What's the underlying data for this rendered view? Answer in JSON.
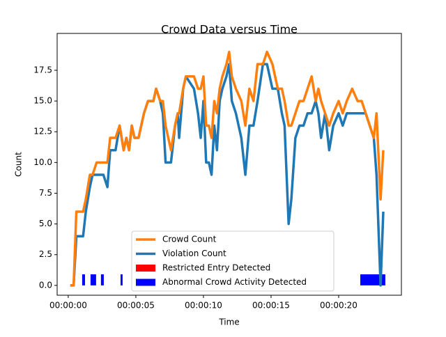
{
  "chart_data": {
    "type": "line",
    "title": "Crowd Data versus Time",
    "x_label": "Time",
    "y_label": "Count",
    "x": [
      0.15,
      0.4,
      0.6,
      1.1,
      1.3,
      1.6,
      1.8,
      2.1,
      2.6,
      2.9,
      3.1,
      3.5,
      3.8,
      4.1,
      4.3,
      4.5,
      4.7,
      4.9,
      5.2,
      5.6,
      5.9,
      6.3,
      6.5,
      6.8,
      7.0,
      7.2,
      7.6,
      7.9,
      8.1,
      8.2,
      8.5,
      8.7,
      9.3,
      9.6,
      9.8,
      10.0,
      10.2,
      10.4,
      10.6,
      10.8,
      11.0,
      11.2,
      11.4,
      11.7,
      11.9,
      12.1,
      12.4,
      12.8,
      13.1,
      13.4,
      13.7,
      14.0,
      14.4,
      14.7,
      15.1,
      15.5,
      15.8,
      16.0,
      16.3,
      16.5,
      16.8,
      17.1,
      17.4,
      17.7,
      18.0,
      18.3,
      18.5,
      18.7,
      19.0,
      19.3,
      19.6,
      20.0,
      20.3,
      20.6,
      21.0,
      21.4,
      21.7,
      22.0,
      22.3,
      22.6,
      22.8,
      23.1,
      23.3
    ],
    "series": [
      {
        "name": "Violation Count",
        "color": "#1f77b4",
        "values": [
          0,
          0,
          4,
          4,
          6,
          8,
          9,
          9,
          9,
          8,
          11,
          11,
          13,
          11,
          12,
          11,
          13,
          12,
          12,
          14,
          15,
          15,
          16,
          15,
          14,
          10,
          10,
          13,
          14,
          12,
          16,
          17,
          16,
          14,
          12,
          15,
          10,
          10,
          9,
          13,
          11,
          15,
          16,
          17,
          18,
          15,
          14,
          12,
          9,
          13,
          13,
          15,
          18,
          18,
          16,
          16,
          14,
          13,
          5,
          7,
          12,
          13,
          13,
          14,
          14,
          15,
          14,
          12,
          14,
          11,
          13,
          14,
          13,
          14,
          14,
          14,
          14,
          14,
          13,
          12,
          9,
          0,
          6
        ]
      },
      {
        "name": "Crowd Count",
        "color": "#ff7f0e",
        "values": [
          0,
          0,
          6,
          6,
          7,
          9,
          9,
          10,
          10,
          10,
          12,
          12,
          13,
          11,
          12,
          11,
          13,
          12,
          12,
          14,
          15,
          15,
          16,
          15,
          15,
          13,
          11,
          13,
          14,
          14,
          16,
          17,
          17,
          16,
          16,
          17,
          13,
          13,
          12,
          15,
          14,
          16,
          17,
          18,
          19,
          17,
          16,
          15,
          13,
          16,
          15,
          18,
          18,
          19,
          18,
          16,
          16,
          15,
          13,
          13,
          14,
          15,
          15,
          16,
          17,
          15,
          16,
          15,
          14,
          13,
          14,
          15,
          14,
          15,
          16,
          15,
          15,
          14,
          13,
          12,
          14,
          7,
          11
        ]
      }
    ],
    "events": [
      {
        "name": "Restricted Entry Detected",
        "color": "#ff0000",
        "height": 0.9,
        "spans": []
      },
      {
        "name": "Abnormal Crowd Activity Detected",
        "color": "#0000ff",
        "height": 0.9,
        "spans": [
          [
            1.03,
            1.24
          ],
          [
            1.65,
            2.06
          ],
          [
            2.42,
            2.63
          ],
          [
            3.87,
            4.02
          ],
          [
            21.6,
            23.45
          ]
        ]
      }
    ],
    "xlim": [
      -0.82,
      24.64
    ],
    "ylim": [
      -0.8,
      20.5
    ],
    "xticks": [
      {
        "value": 0,
        "label": "00:00:00"
      },
      {
        "value": 5,
        "label": "00:00:05"
      },
      {
        "value": 10,
        "label": "00:00:10"
      },
      {
        "value": 15,
        "label": "00:00:15"
      },
      {
        "value": 20,
        "label": "00:00:20"
      }
    ],
    "yticks": [
      {
        "value": 0,
        "label": "0.0"
      },
      2.5,
      {
        "value": 5,
        "label": "5.0"
      },
      7.5,
      {
        "value": 10,
        "label": "10.0"
      },
      12.5,
      {
        "value": 15,
        "label": "15.0"
      },
      17.5
    ],
    "legend": "lower center"
  }
}
